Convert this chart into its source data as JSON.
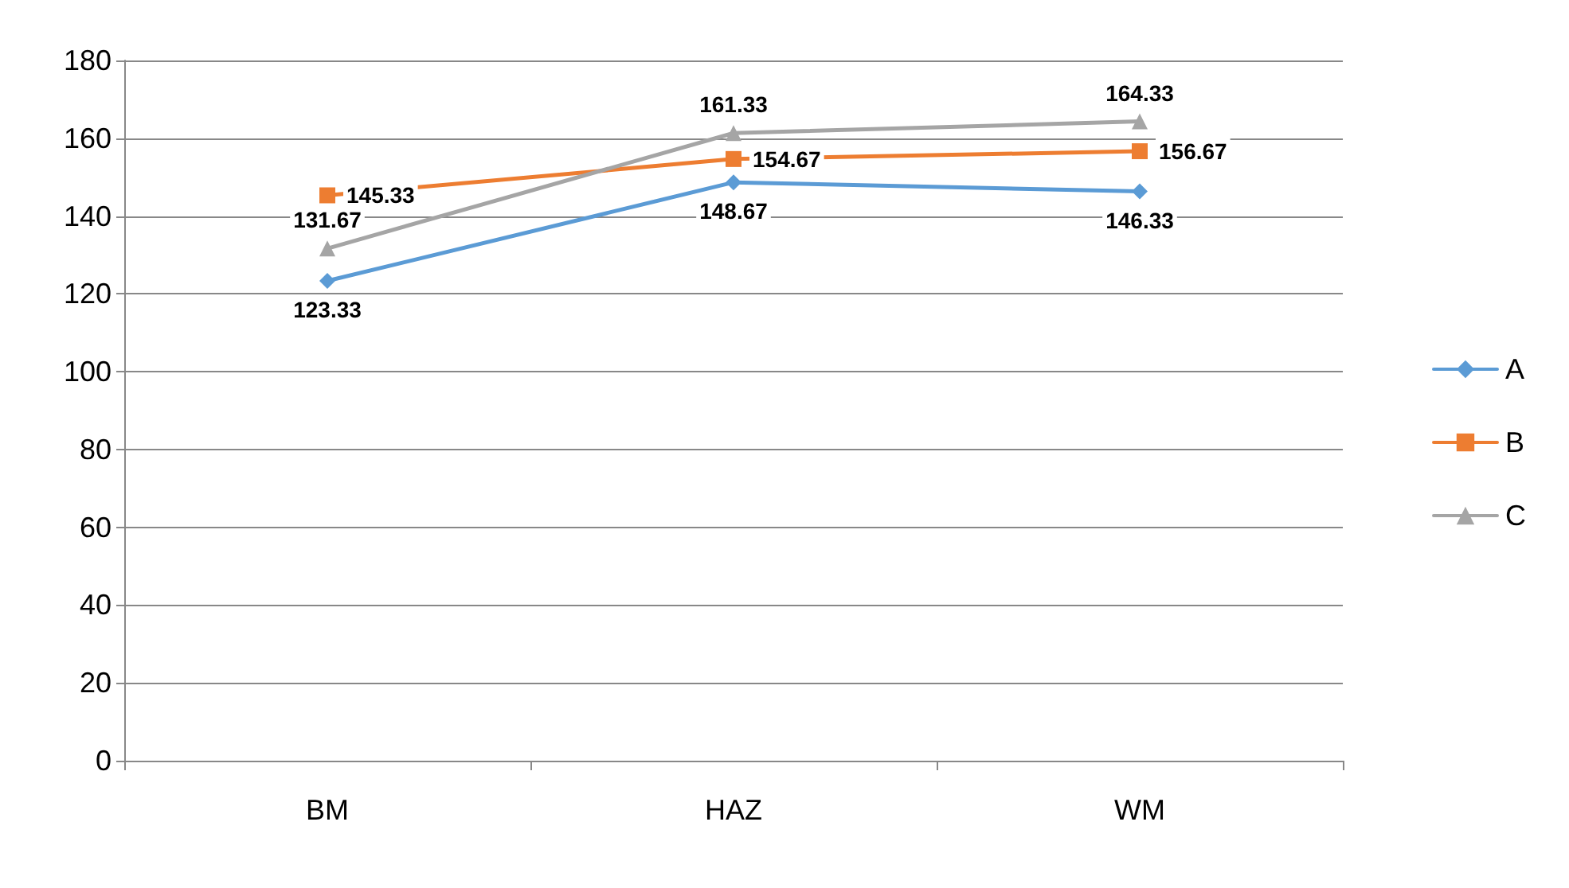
{
  "chart_data": {
    "type": "line",
    "categories": [
      "BM",
      "HAZ",
      "WM"
    ],
    "series": [
      {
        "name": "A",
        "color": "#5b9bd5",
        "marker": "diamond",
        "values": [
          123.33,
          148.67,
          146.33
        ]
      },
      {
        "name": "B",
        "color": "#ed7d31",
        "marker": "square",
        "values": [
          145.33,
          154.67,
          156.67
        ]
      },
      {
        "name": "C",
        "color": "#a5a5a5",
        "marker": "triangle",
        "values": [
          131.67,
          161.33,
          164.33
        ]
      }
    ],
    "ylim": [
      0,
      180
    ],
    "yticks": [
      0,
      20,
      40,
      60,
      80,
      100,
      120,
      140,
      160,
      180
    ],
    "grid": "y",
    "legend": "right",
    "data_labels": true
  }
}
